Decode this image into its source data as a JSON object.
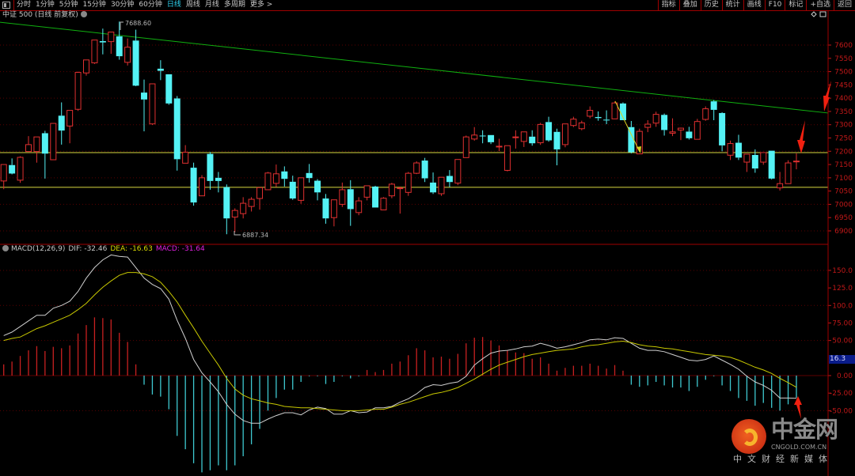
{
  "toolbar": {
    "left_items": [
      "分时",
      "1分钟",
      "5分钟",
      "15分钟",
      "30分钟",
      "60分钟",
      "日线",
      "周线",
      "月线",
      "多周期",
      "更多 >"
    ],
    "active_item": "日线",
    "right_items": [
      "指标",
      "叠加",
      "历史",
      "统计",
      "画线",
      "F10",
      "标记",
      "+自选",
      "返回"
    ]
  },
  "title": "中证 500 (日线 前复权)",
  "macd_legend": {
    "name": "MACD(12,26,9)",
    "dif": "DIF: -32.46",
    "dea": "DEA: -16.63",
    "macd": "MACD: -31.64"
  },
  "cursor_value": "16.3",
  "logo": {
    "main": "中金网",
    "url": "CNGOLD.COM.CN",
    "tagline": "中文财经新媒体"
  },
  "colors": {
    "up": "#e03030",
    "down": "#54f2f5",
    "dif": "#d0d0d0",
    "dea": "#c8c800",
    "trendline": "#10b010",
    "level": "#d8d840",
    "axis": "#c01818",
    "arrow": "#f02010"
  },
  "chart_data": [
    {
      "type": "candlestick",
      "title": "中证 500 (日线 前复权)",
      "ohlc_order": [
        "open",
        "high",
        "low",
        "close"
      ],
      "ohlc": [
        [
          7088,
          7150,
          7057,
          7150
        ],
        [
          7148,
          7173,
          7113,
          7116
        ],
        [
          7091,
          7181,
          7081,
          7177
        ],
        [
          7199,
          7257,
          7199,
          7225
        ],
        [
          7199,
          7254,
          7157,
          7254
        ],
        [
          7268,
          7277,
          7097,
          7191
        ],
        [
          7168,
          7305,
          7168,
          7305
        ],
        [
          7334,
          7384,
          7225,
          7278
        ],
        [
          7295,
          7354,
          7230,
          7354
        ],
        [
          7358,
          7500,
          7352,
          7497
        ],
        [
          7495,
          7544,
          7485,
          7544
        ],
        [
          7533,
          7619,
          7529,
          7619
        ],
        [
          7615,
          7662,
          7565,
          7610
        ],
        [
          7613,
          7649,
          7567,
          7649
        ],
        [
          7633,
          7688.6,
          7545,
          7558
        ],
        [
          7535,
          7625,
          7523,
          7592
        ],
        [
          7617,
          7658,
          7445,
          7447
        ],
        [
          7421,
          7470,
          7275,
          7395
        ],
        [
          7303,
          7454,
          7299,
          7454
        ],
        [
          7511,
          7543,
          7468,
          7503
        ],
        [
          7490,
          7490,
          7375,
          7380
        ],
        [
          7399,
          7408,
          7127,
          7170
        ],
        [
          7155,
          7223,
          7155,
          7196
        ],
        [
          7138,
          7157,
          6995,
          7007
        ],
        [
          7032,
          7110,
          7032,
          7100
        ],
        [
          7190,
          7197,
          7055,
          7088
        ],
        [
          7100,
          7122,
          7045,
          7088
        ],
        [
          7065,
          7075,
          6887.34,
          6947
        ],
        [
          6952,
          6985,
          6895,
          6977
        ],
        [
          6965,
          7027,
          6947,
          7004
        ],
        [
          6992,
          7027,
          6973,
          7019
        ],
        [
          7022,
          7063,
          6980,
          7063
        ],
        [
          7055,
          7122,
          7055,
          7118
        ],
        [
          7079,
          7150,
          7065,
          7115
        ],
        [
          7124,
          7143,
          7067,
          7096
        ],
        [
          7085,
          7108,
          7017,
          7022
        ],
        [
          7015,
          7100,
          7002,
          7100
        ],
        [
          7118,
          7152,
          7082,
          7099
        ],
        [
          7089,
          7095,
          7015,
          7045
        ],
        [
          7022,
          7039,
          6927,
          6947
        ],
        [
          6950,
          7017,
          6917,
          7017
        ],
        [
          7000,
          7082,
          6990,
          7055
        ],
        [
          7057,
          7091,
          6919,
          6982
        ],
        [
          6969,
          7027,
          6959,
          7013
        ],
        [
          7027,
          7070,
          7015,
          7070
        ],
        [
          7067,
          7070,
          6988,
          6988
        ],
        [
          6979,
          7027,
          6979,
          7023
        ],
        [
          7032,
          7081,
          7023,
          7076
        ],
        [
          7060,
          7067,
          6965,
          7062
        ],
        [
          7045,
          7122,
          7032,
          7117
        ],
        [
          7117,
          7162,
          7114,
          7156
        ],
        [
          7165,
          7175,
          7084,
          7098
        ],
        [
          7082,
          7120,
          7039,
          7045
        ],
        [
          7040,
          7102,
          7032,
          7102
        ],
        [
          7107,
          7129,
          7065,
          7084
        ],
        [
          7080,
          7169,
          7072,
          7169
        ],
        [
          7176,
          7259,
          7176,
          7254
        ],
        [
          7246,
          7291,
          7240,
          7261
        ],
        [
          7259,
          7279,
          7230,
          7257
        ],
        [
          7261,
          7261,
          7227,
          7234
        ],
        [
          7216,
          7247,
          7200,
          7219
        ],
        [
          7128,
          7221,
          7124,
          7221
        ],
        [
          7252,
          7279,
          7210,
          7254
        ],
        [
          7237,
          7273,
          7216,
          7273
        ],
        [
          7255,
          7279,
          7221,
          7230
        ],
        [
          7232,
          7307,
          7224,
          7301
        ],
        [
          7310,
          7330,
          7236,
          7241
        ],
        [
          7273,
          7285,
          7147,
          7207
        ],
        [
          7225,
          7303,
          7215,
          7303
        ],
        [
          7297,
          7330,
          7291,
          7321
        ],
        [
          7285,
          7315,
          7279,
          7307
        ],
        [
          7332,
          7369,
          7324,
          7354
        ],
        [
          7329,
          7350,
          7315,
          7325
        ],
        [
          7319,
          7354,
          7302,
          7317
        ],
        [
          7322,
          7387,
          7322,
          7382
        ],
        [
          7380,
          7384,
          7317,
          7317
        ],
        [
          7291,
          7314,
          7192,
          7196
        ],
        [
          7190,
          7285,
          7190,
          7275
        ],
        [
          7290,
          7317,
          7272,
          7302
        ],
        [
          7306,
          7349,
          7292,
          7339
        ],
        [
          7337,
          7342,
          7259,
          7280
        ],
        [
          7268,
          7324,
          7257,
          7273
        ],
        [
          7280,
          7289,
          7242,
          7287
        ],
        [
          7274,
          7292,
          7244,
          7249
        ],
        [
          7245,
          7322,
          7245,
          7312
        ],
        [
          7320,
          7369,
          7315,
          7360
        ],
        [
          7388,
          7393,
          7317,
          7356
        ],
        [
          7344,
          7347,
          7200,
          7222
        ],
        [
          7185,
          7240,
          7167,
          7229
        ],
        [
          7232,
          7262,
          7167,
          7176
        ],
        [
          7159,
          7189,
          7122,
          7189
        ],
        [
          7186,
          7207,
          7119,
          7135
        ],
        [
          7159,
          7195,
          7149,
          7195
        ],
        [
          7202,
          7202,
          7094,
          7097
        ],
        [
          7062,
          7122,
          7052,
          7078
        ],
        [
          7078,
          7166,
          7078,
          7156
        ],
        [
          7161,
          7192,
          7132,
          7163
        ]
      ],
      "ylim": [
        6860,
        7710
      ],
      "y_ticks": [
        "7600",
        "7550",
        "7500",
        "7450",
        "7400",
        "7350",
        "7300",
        "7250",
        "7200",
        "7150",
        "7100",
        "7050",
        "7000",
        "6950",
        "6900"
      ],
      "grid": true,
      "annotations": {
        "high_label": "7688.60",
        "low_label": "6887.34"
      },
      "trendline": {
        "start_price": 7686,
        "end_price": 7344
      },
      "horizontal_levels": [
        7195,
        7064
      ]
    },
    {
      "type": "line",
      "title": "MACD(12,26,9)",
      "series": [
        {
          "name": "DIF",
          "values": [
            57,
            62,
            70,
            78,
            86,
            86,
            96,
            100,
            106,
            120,
            139,
            154,
            165,
            172,
            170,
            169,
            154,
            139,
            130,
            124,
            109,
            79,
            53,
            23,
            4,
            -9,
            -23,
            -41,
            -55,
            -64,
            -68,
            -68,
            -62,
            -57,
            -53,
            -53,
            -56,
            -49,
            -45,
            -47,
            -55,
            -55,
            -50,
            -53,
            -52,
            -46,
            -46,
            -44,
            -38,
            -33,
            -26,
            -17,
            -13,
            -14,
            -11,
            -9,
            -1,
            15,
            24,
            32,
            35,
            36,
            38,
            41,
            42,
            46,
            43,
            39,
            41,
            44,
            47,
            51,
            52,
            51,
            54,
            53,
            46,
            39,
            36,
            36,
            34,
            30,
            26,
            22,
            21,
            23,
            28,
            22,
            16,
            9,
            -1,
            -9,
            -14,
            -21,
            -32,
            -32,
            -32.46
          ]
        },
        {
          "name": "DEA",
          "values": [
            50,
            53,
            55,
            61,
            67,
            71,
            76,
            81,
            86,
            94,
            103,
            115,
            126,
            135,
            143,
            147,
            147,
            145,
            141,
            133,
            120,
            105,
            86,
            68,
            49,
            32,
            15,
            -4,
            -19,
            -28,
            -33,
            -36,
            -39,
            -41,
            -44,
            -45,
            -46,
            -46,
            -47,
            -48,
            -49,
            -50,
            -50,
            -50,
            -49,
            -48,
            -48,
            -45,
            -41,
            -38,
            -34,
            -30,
            -26,
            -24,
            -21,
            -17,
            -11,
            -5,
            2,
            9,
            15,
            19,
            23,
            27,
            30,
            32,
            34,
            36,
            37,
            38,
            41,
            43,
            44,
            46,
            48,
            49,
            47,
            44,
            42,
            41,
            39,
            38,
            36,
            34,
            32,
            30,
            29,
            28,
            26,
            22,
            17,
            12,
            8,
            3,
            -4,
            -10,
            -16.63
          ]
        },
        {
          "name": "MACD",
          "type": "bar",
          "values": [
            16,
            20,
            28,
            36,
            42,
            35,
            41,
            39,
            43,
            60,
            72,
            83,
            82,
            80,
            61,
            48,
            16,
            -13,
            -27,
            -30,
            -48,
            -86,
            -105,
            -125,
            -138,
            -135,
            -128,
            -135,
            -128,
            -115,
            -98,
            -76,
            -50,
            -32,
            -20,
            -20,
            -9,
            -1,
            -1,
            -12,
            -9,
            -1,
            -4,
            -1,
            8,
            5,
            8,
            17,
            20,
            29,
            39,
            36,
            26,
            27,
            24,
            31,
            46,
            54,
            55,
            50,
            43,
            36,
            33,
            32,
            24,
            26,
            17,
            7,
            11,
            14,
            14,
            17,
            14,
            10,
            15,
            7,
            -13,
            -16,
            -14,
            -9,
            -14,
            -17,
            -17,
            -22,
            -16,
            -6,
            -1,
            -14,
            -22,
            -32,
            -36,
            -43,
            -39,
            -46,
            -50,
            -41,
            -31.64
          ]
        }
      ],
      "ylim": [
        -140,
        175
      ],
      "y_ticks": [
        "150.0",
        "125.0",
        "100.0",
        "75.00",
        "50.00",
        "0.00",
        "-25.00",
        "-50.00"
      ],
      "grid": true
    }
  ]
}
